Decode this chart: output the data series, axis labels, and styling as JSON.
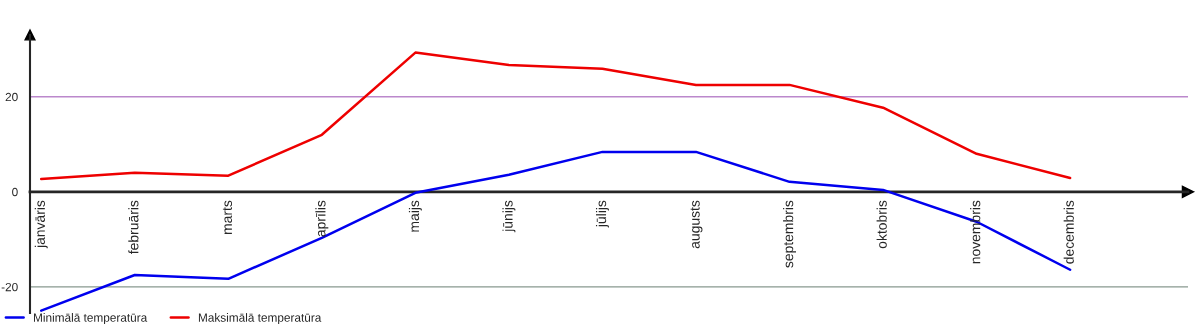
{
  "chart_data": {
    "type": "line",
    "categories": [
      "janvāris",
      "februāris",
      "marts",
      "aprīlis",
      "maijs",
      "jūnijs",
      "jūlijs",
      "augusts",
      "septembris",
      "oktobris",
      "novembris",
      "decembris"
    ],
    "series": [
      {
        "name": "Minimālā temperatūra",
        "color": "#0000ee",
        "values": [
          -25,
          -17.5,
          -18.3,
          -9.7,
          -0.2,
          3.6,
          8.4,
          8.4,
          2.1,
          0.4,
          -6.3,
          -16.4
        ]
      },
      {
        "name": "Maksimālā temperatūra",
        "color": "#ee0000",
        "values": [
          2.7,
          4.0,
          3.4,
          12,
          29.3,
          26.7,
          25.9,
          22.5,
          22.5,
          17.7,
          8,
          2.9
        ]
      }
    ],
    "ylim": [
      -25.5,
      33
    ],
    "yticks": [
      -20,
      0,
      20
    ],
    "ref_lines": [
      {
        "axis": "y",
        "value": 20,
        "color": "#bb88cc"
      },
      {
        "axis": "y",
        "value": -20,
        "color": "#88998f"
      }
    ],
    "grid": false,
    "legend": "bottom left",
    "marker": "none",
    "line_style": "solid"
  }
}
